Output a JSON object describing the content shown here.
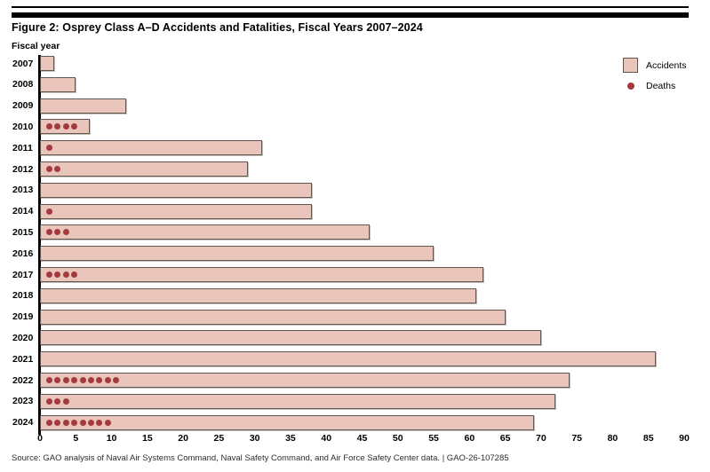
{
  "header": {
    "title": "Figure 2: Osprey Class A–D Accidents and Fatalities, Fiscal Years 2007–2024"
  },
  "chart": {
    "y_axis_title": "Fiscal year",
    "legend": {
      "accidents_label": "Accidents",
      "deaths_label": "Deaths"
    }
  },
  "chart_data": {
    "type": "bar",
    "orientation": "horizontal",
    "title": "Figure 2: Osprey Class A–D Accidents and Fatalities, Fiscal Years 2007–2024",
    "xlabel": "",
    "ylabel": "Fiscal year",
    "xlim": [
      0,
      90
    ],
    "x_ticks": [
      0,
      5,
      10,
      15,
      20,
      25,
      30,
      35,
      40,
      45,
      50,
      55,
      60,
      65,
      70,
      75,
      80,
      85,
      90
    ],
    "grid": false,
    "legend_position": "top-right",
    "categories": [
      "2007",
      "2008",
      "2009",
      "2010",
      "2011",
      "2012",
      "2013",
      "2014",
      "2015",
      "2016",
      "2017",
      "2018",
      "2019",
      "2020",
      "2021",
      "2022",
      "2023",
      "2024"
    ],
    "series": [
      {
        "name": "Accidents",
        "style": "bar",
        "values": [
          2,
          5,
          12,
          7,
          31,
          29,
          38,
          38,
          46,
          55,
          62,
          61,
          65,
          70,
          86,
          74,
          72,
          69
        ]
      },
      {
        "name": "Deaths",
        "style": "dots",
        "values": [
          0,
          0,
          0,
          4,
          1,
          2,
          0,
          1,
          3,
          0,
          4,
          0,
          0,
          0,
          0,
          9,
          3,
          8
        ]
      }
    ],
    "colors": {
      "accidents_fill": "#e9c5bb",
      "accidents_border": "#60564e",
      "deaths_dot": "#a33a3e"
    }
  },
  "footer": {
    "source": "Source: GAO analysis of Naval Air Systems Command, Naval Safety Command, and Air Force Safety Center data.  |  GAO-26-107285"
  }
}
